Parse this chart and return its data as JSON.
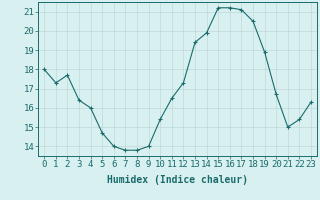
{
  "x": [
    0,
    1,
    2,
    3,
    4,
    5,
    6,
    7,
    8,
    9,
    10,
    11,
    12,
    13,
    14,
    15,
    16,
    17,
    18,
    19,
    20,
    21,
    22,
    23
  ],
  "y": [
    18.0,
    17.3,
    17.7,
    16.4,
    16.0,
    14.7,
    14.0,
    13.8,
    13.8,
    14.0,
    15.4,
    16.5,
    17.3,
    19.4,
    19.9,
    21.2,
    21.2,
    21.1,
    20.5,
    18.9,
    16.7,
    15.0,
    15.4,
    16.3
  ],
  "line_color": "#1a6b6b",
  "marker": "+",
  "marker_size": 3,
  "bg_color": "#d8f0f0",
  "grid_color": "#c0d8d8",
  "xlabel": "Humidex (Indice chaleur)",
  "xlim": [
    -0.5,
    23.5
  ],
  "ylim": [
    13.5,
    21.5
  ],
  "yticks": [
    14,
    15,
    16,
    17,
    18,
    19,
    20,
    21
  ],
  "xticks": [
    0,
    1,
    2,
    3,
    4,
    5,
    6,
    7,
    8,
    9,
    10,
    11,
    12,
    13,
    14,
    15,
    16,
    17,
    18,
    19,
    20,
    21,
    22,
    23
  ],
  "label_fontsize": 7,
  "tick_fontsize": 6.5
}
